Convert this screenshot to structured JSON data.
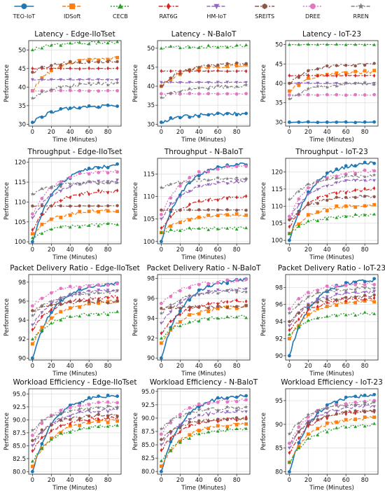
{
  "legend": {
    "placement": "top",
    "entries": [
      {
        "name": "TEO-IoT",
        "color": "#1f77b4",
        "marker": "circle"
      },
      {
        "name": "IDSoft",
        "color": "#ff7f0e",
        "marker": "square"
      },
      {
        "name": "CECB",
        "color": "#2ca02c",
        "marker": "triangle-up"
      },
      {
        "name": "RAT6G",
        "color": "#d62728",
        "marker": "diamond"
      },
      {
        "name": "HM-IoT",
        "color": "#9467bd",
        "marker": "triangle-down"
      },
      {
        "name": "SREITS",
        "color": "#8c564b",
        "marker": "hexagon"
      },
      {
        "name": "DREE",
        "color": "#e377c2",
        "marker": "circle"
      },
      {
        "name": "RREN",
        "color": "#7f7f7f",
        "marker": "star"
      }
    ]
  },
  "chart_data": [
    {
      "type": "line",
      "title": "Latency - Edge-IIoTset",
      "xlabel": "Time (Minutes)",
      "ylabel": "Performance",
      "xlim": [
        -4,
        94
      ],
      "ylim": [
        29.5,
        52.5
      ],
      "xticks": [
        0,
        20,
        40,
        60,
        80
      ],
      "yticks": [
        30,
        35,
        40,
        45,
        50
      ],
      "grid": true,
      "series": [
        {
          "name": "TEO-IoT",
          "start": 30.5,
          "end": 35
        },
        {
          "name": "IDSoft",
          "start": 39,
          "end": 48
        },
        {
          "name": "CECB",
          "start": 50,
          "end": 52
        },
        {
          "name": "RAT6G",
          "start": 45,
          "end": 45
        },
        {
          "name": "HM-IoT",
          "start": 42,
          "end": 42
        },
        {
          "name": "SREITS",
          "start": 44,
          "end": 47
        },
        {
          "name": "DREE",
          "start": 39,
          "end": 39
        },
        {
          "name": "RREN",
          "start": 37,
          "end": 41
        }
      ]
    },
    {
      "type": "line",
      "title": "Latency - N-BaIoT",
      "xlabel": "Time (Minutes)",
      "ylabel": "Performance",
      "xlim": [
        -4,
        94
      ],
      "ylim": [
        29.5,
        52
      ],
      "xticks": [
        0,
        20,
        40,
        60,
        80
      ],
      "yticks": [
        30,
        35,
        40,
        45,
        50
      ],
      "grid": true,
      "series": [
        {
          "name": "TEO-IoT",
          "start": 30.5,
          "end": 32.8
        },
        {
          "name": "IDSoft",
          "start": 40,
          "end": 45.5
        },
        {
          "name": "CECB",
          "start": 50,
          "end": 50.5
        },
        {
          "name": "RAT6G",
          "start": 44,
          "end": 44
        },
        {
          "name": "HM-IoT",
          "start": 41,
          "end": 41
        },
        {
          "name": "SREITS",
          "start": 40,
          "end": 46
        },
        {
          "name": "DREE",
          "start": 38,
          "end": 38
        },
        {
          "name": "RREN",
          "start": 37,
          "end": 40
        }
      ]
    },
    {
      "type": "line",
      "title": "Latency - IoT-23",
      "xlabel": "Time (Minutes)",
      "ylabel": "Performance",
      "xlim": [
        -4,
        94
      ],
      "ylim": [
        29,
        51
      ],
      "xticks": [
        0,
        20,
        40,
        60,
        80
      ],
      "yticks": [
        30,
        35,
        40,
        45,
        50
      ],
      "grid": true,
      "series": [
        {
          "name": "TEO-IoT",
          "start": 30,
          "end": 30
        },
        {
          "name": "IDSoft",
          "start": 38,
          "end": 43
        },
        {
          "name": "CECB",
          "start": 50,
          "end": 50
        },
        {
          "name": "RAT6G",
          "start": 42,
          "end": 42
        },
        {
          "name": "HM-IoT",
          "start": 40,
          "end": 40
        },
        {
          "name": "SREITS",
          "start": 40,
          "end": 45
        },
        {
          "name": "DREE",
          "start": 37,
          "end": 37
        },
        {
          "name": "RREN",
          "start": 36,
          "end": 40
        }
      ]
    },
    {
      "type": "line",
      "title": "Throughput - Edge-IIoTset",
      "xlabel": "Time (Minutes)",
      "ylabel": "Performance",
      "xlim": [
        -4,
        94
      ],
      "ylim": [
        99.5,
        121
      ],
      "xticks": [
        0,
        20,
        40,
        60,
        80
      ],
      "yticks": [
        100,
        105,
        110,
        115,
        120
      ],
      "grid": true,
      "series": [
        {
          "name": "TEO-IoT",
          "start": 100,
          "end": 119.5
        },
        {
          "name": "IDSoft",
          "start": 102,
          "end": 108
        },
        {
          "name": "CECB",
          "start": 101,
          "end": 104.5
        },
        {
          "name": "RAT6G",
          "start": 103,
          "end": 113
        },
        {
          "name": "HM-IoT",
          "start": 106,
          "end": 115.5
        },
        {
          "name": "SREITS",
          "start": 109,
          "end": 109
        },
        {
          "name": "DREE",
          "start": 107,
          "end": 118
        },
        {
          "name": "RREN",
          "start": 112,
          "end": 115
        }
      ]
    },
    {
      "type": "line",
      "title": "Throughput - N-BaIoT",
      "xlabel": "Time (Minutes)",
      "ylabel": "Performance",
      "xlim": [
        -4,
        94
      ],
      "ylim": [
        99.5,
        118.5
      ],
      "xticks": [
        0,
        20,
        40,
        60,
        80
      ],
      "yticks": [
        100,
        105,
        110,
        115
      ],
      "grid": true,
      "series": [
        {
          "name": "TEO-IoT",
          "start": 100,
          "end": 117.5
        },
        {
          "name": "IDSoft",
          "start": 102,
          "end": 106
        },
        {
          "name": "CECB",
          "start": 102,
          "end": 103
        },
        {
          "name": "RAT6G",
          "start": 103,
          "end": 110
        },
        {
          "name": "HM-IoT",
          "start": 105,
          "end": 113.5
        },
        {
          "name": "SREITS",
          "start": 107,
          "end": 107
        },
        {
          "name": "DREE",
          "start": 106,
          "end": 117
        },
        {
          "name": "RREN",
          "start": 112,
          "end": 114
        }
      ]
    },
    {
      "type": "line",
      "title": "Throughput - IoT-23",
      "xlabel": "Time (Minutes)",
      "ylabel": "Performance",
      "xlim": [
        -4,
        94
      ],
      "ylim": [
        99,
        124
      ],
      "xticks": [
        0,
        20,
        40,
        60,
        80
      ],
      "yticks": [
        100,
        105,
        110,
        115,
        120
      ],
      "grid": true,
      "series": [
        {
          "name": "TEO-IoT",
          "start": 100,
          "end": 123
        },
        {
          "name": "IDSoft",
          "start": 102,
          "end": 110.5
        },
        {
          "name": "CECB",
          "start": 102,
          "end": 107.5
        },
        {
          "name": "RAT6G",
          "start": 104,
          "end": 115
        },
        {
          "name": "HM-IoT",
          "start": 106,
          "end": 118
        },
        {
          "name": "SREITS",
          "start": 106,
          "end": 113
        },
        {
          "name": "DREE",
          "start": 107,
          "end": 120.5
        },
        {
          "name": "RREN",
          "start": 112,
          "end": 119
        }
      ]
    },
    {
      "type": "line",
      "title": "Packet Delivery Ratio - Edge-IIoTset",
      "xlabel": "Time (Minutes)",
      "ylabel": "Performance",
      "xlim": [
        -4,
        94
      ],
      "ylim": [
        89.8,
        98.8
      ],
      "xticks": [
        0,
        20,
        40,
        60,
        80
      ],
      "yticks": [
        90,
        92,
        94,
        96,
        98
      ],
      "grid": true,
      "series": [
        {
          "name": "TEO-IoT",
          "start": 90,
          "end": 98
        },
        {
          "name": "IDSoft",
          "start": 91.5,
          "end": 96
        },
        {
          "name": "CECB",
          "start": 92,
          "end": 94.8
        },
        {
          "name": "RAT6G",
          "start": 93,
          "end": 96.5
        },
        {
          "name": "HM-IoT",
          "start": 93.5,
          "end": 97.2
        },
        {
          "name": "SREITS",
          "start": 95,
          "end": 96
        },
        {
          "name": "DREE",
          "start": 95.5,
          "end": 97.8
        },
        {
          "name": "RREN",
          "start": 94.5,
          "end": 97
        }
      ]
    },
    {
      "type": "line",
      "title": "Packet Delivery Ratio - N-BaIoT",
      "xlabel": "Time (Minutes)",
      "ylabel": "Performance",
      "xlim": [
        -4,
        94
      ],
      "ylim": [
        89.8,
        98.4
      ],
      "xticks": [
        0,
        20,
        40,
        60,
        80
      ],
      "yticks": [
        90,
        92,
        94,
        96,
        98
      ],
      "grid": true,
      "series": [
        {
          "name": "TEO-IoT",
          "start": 90,
          "end": 98
        },
        {
          "name": "IDSoft",
          "start": 91.5,
          "end": 95.2
        },
        {
          "name": "CECB",
          "start": 92,
          "end": 94.2
        },
        {
          "name": "RAT6G",
          "start": 92.5,
          "end": 95.8
        },
        {
          "name": "HM-IoT",
          "start": 93.5,
          "end": 97
        },
        {
          "name": "SREITS",
          "start": 95,
          "end": 95.2
        },
        {
          "name": "DREE",
          "start": 95.5,
          "end": 97.8
        },
        {
          "name": "RREN",
          "start": 94.5,
          "end": 96.8
        }
      ]
    },
    {
      "type": "line",
      "title": "Packet Delivery Ratio - IoT-23",
      "xlabel": "Time (Minutes)",
      "ylabel": "Performance",
      "xlim": [
        -4,
        94
      ],
      "ylim": [
        89.5,
        99.5
      ],
      "xticks": [
        0,
        20,
        40,
        60,
        80
      ],
      "yticks": [
        90,
        92,
        94,
        96,
        98
      ],
      "grid": true,
      "series": [
        {
          "name": "TEO-IoT",
          "start": 90,
          "end": 99
        },
        {
          "name": "IDSoft",
          "start": 92,
          "end": 96.5
        },
        {
          "name": "CECB",
          "start": 92.5,
          "end": 95
        },
        {
          "name": "RAT6G",
          "start": 93,
          "end": 96.8
        },
        {
          "name": "HM-IoT",
          "start": 93.5,
          "end": 97.5
        },
        {
          "name": "SREITS",
          "start": 94,
          "end": 97
        },
        {
          "name": "DREE",
          "start": 95.5,
          "end": 98.5
        },
        {
          "name": "RREN",
          "start": 95,
          "end": 98
        }
      ]
    },
    {
      "type": "line",
      "title": "Workload Efficiency - Edge-IIoTset",
      "xlabel": "Time (Minutes)",
      "ylabel": "Performance",
      "xlim": [
        -4,
        94
      ],
      "ylim": [
        79.5,
        96
      ],
      "xticks": [
        0,
        20,
        40,
        60,
        80
      ],
      "yticks": [
        80.0,
        82.5,
        85.0,
        87.5,
        90.0,
        92.5,
        95.0
      ],
      "grid": true,
      "series": [
        {
          "name": "TEO-IoT",
          "start": 80,
          "end": 95
        },
        {
          "name": "IDSoft",
          "start": 81,
          "end": 90
        },
        {
          "name": "CECB",
          "start": 82,
          "end": 89
        },
        {
          "name": "RAT6G",
          "start": 84,
          "end": 90.5
        },
        {
          "name": "HM-IoT",
          "start": 85,
          "end": 92
        },
        {
          "name": "SREITS",
          "start": 86,
          "end": 91
        },
        {
          "name": "DREE",
          "start": 87,
          "end": 93.5
        },
        {
          "name": "RREN",
          "start": 88,
          "end": 92.5
        }
      ]
    },
    {
      "type": "line",
      "title": "Workload Efficiency - N-BaIoT",
      "xlabel": "Time (Minutes)",
      "ylabel": "Performance",
      "xlim": [
        -4,
        94
      ],
      "ylim": [
        79.5,
        95.5
      ],
      "xticks": [
        0,
        20,
        40,
        60,
        80
      ],
      "yticks": [
        80.0,
        82.5,
        85.0,
        87.5,
        90.0,
        92.5,
        95.0
      ],
      "grid": true,
      "series": [
        {
          "name": "TEO-IoT",
          "start": 80,
          "end": 94.5
        },
        {
          "name": "IDSoft",
          "start": 81,
          "end": 89
        },
        {
          "name": "CECB",
          "start": 82,
          "end": 88
        },
        {
          "name": "RAT6G",
          "start": 84,
          "end": 90
        },
        {
          "name": "HM-IoT",
          "start": 85,
          "end": 91.5
        },
        {
          "name": "SREITS",
          "start": 86,
          "end": 90
        },
        {
          "name": "DREE",
          "start": 87,
          "end": 93.5
        },
        {
          "name": "RREN",
          "start": 88,
          "end": 92
        }
      ]
    },
    {
      "type": "line",
      "title": "Workload Efficiency - IoT-23",
      "xlabel": "Time (Minutes)",
      "ylabel": "Performance",
      "xlim": [
        -4,
        94
      ],
      "ylim": [
        79.5,
        97.5
      ],
      "xticks": [
        0,
        20,
        40,
        60,
        80
      ],
      "yticks": [
        80,
        85,
        90,
        95
      ],
      "grid": true,
      "series": [
        {
          "name": "TEO-IoT",
          "start": 80,
          "end": 96.5
        },
        {
          "name": "IDSoft",
          "start": 82,
          "end": 91.5
        },
        {
          "name": "CECB",
          "start": 82,
          "end": 90
        },
        {
          "name": "RAT6G",
          "start": 84,
          "end": 93
        },
        {
          "name": "HM-IoT",
          "start": 85,
          "end": 94
        },
        {
          "name": "SREITS",
          "start": 86,
          "end": 93
        },
        {
          "name": "DREE",
          "start": 86,
          "end": 95
        },
        {
          "name": "RREN",
          "start": 88,
          "end": 94.5
        }
      ]
    }
  ]
}
